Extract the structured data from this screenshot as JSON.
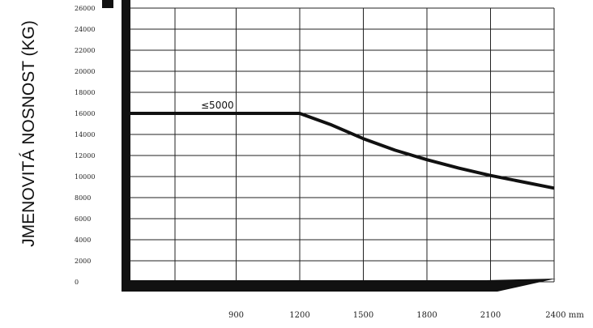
{
  "chart_data": {
    "type": "line",
    "ylabel": "JMENOVITÁ NOSNOST (KG)",
    "x_unit": "mm",
    "x_ticks": [
      900,
      1200,
      1500,
      1800,
      2100,
      2400
    ],
    "x_tick_labels": [
      "900",
      "1200",
      "1500",
      "1800",
      "2100",
      "2400 mm"
    ],
    "y_ticks": [
      0,
      2000,
      4000,
      6000,
      8000,
      10000,
      12000,
      14000,
      16000,
      18000,
      20000,
      22000,
      24000,
      26000
    ],
    "xlim": [
      0,
      2400
    ],
    "ylim": [
      0,
      26000
    ],
    "grid": true,
    "annotation": "≤5000",
    "series": [
      {
        "x": [
          0,
          1200,
          1350,
          1500,
          1650,
          1800,
          1950,
          2100,
          2250,
          2400
        ],
        "values": [
          16000,
          16000,
          14900,
          13600,
          12500,
          11600,
          10800,
          10100,
          9500,
          8900
        ]
      }
    ],
    "colors": {
      "line": "#111111",
      "grid": "#222222",
      "axis": "#111111"
    }
  }
}
